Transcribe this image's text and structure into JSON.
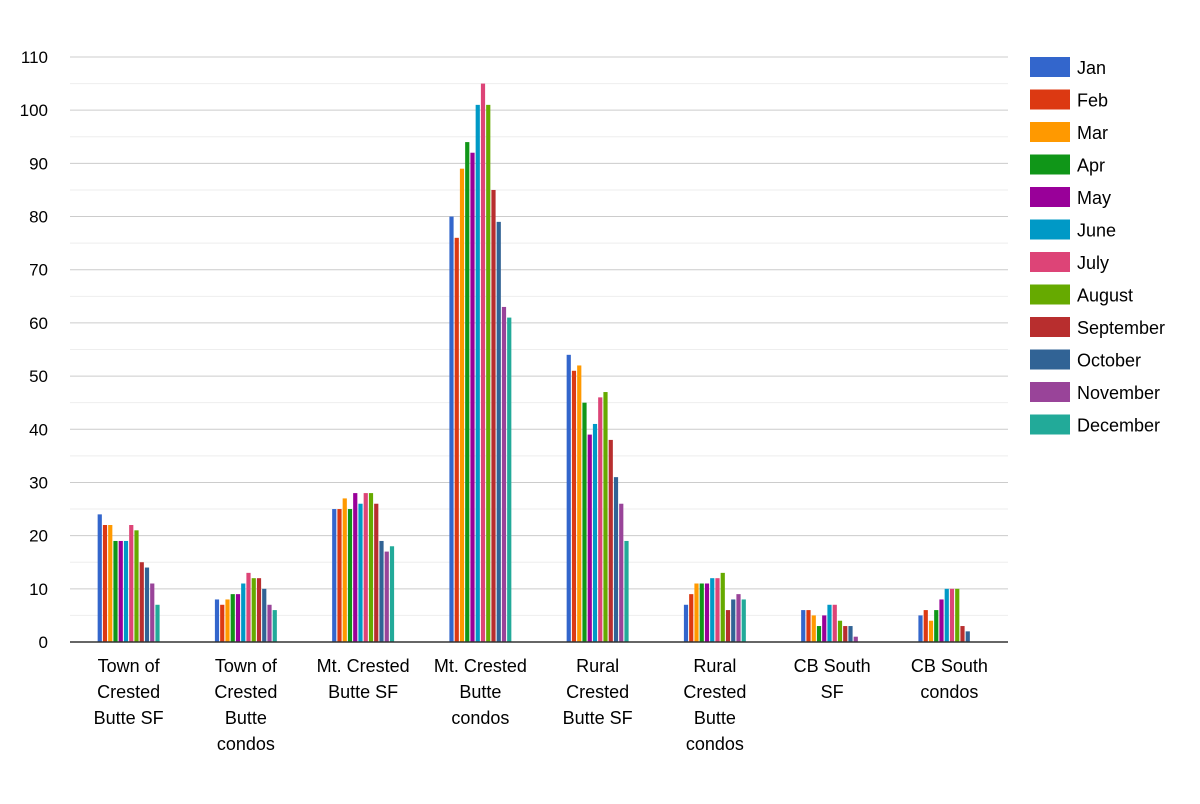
{
  "chart_data": {
    "type": "bar",
    "title": "",
    "xlabel": "",
    "ylabel": "",
    "ylim": [
      0,
      110
    ],
    "yticks": [
      0,
      10,
      20,
      30,
      40,
      50,
      60,
      70,
      80,
      90,
      100,
      110
    ],
    "grid": true,
    "legend_position": "right",
    "categories": [
      [
        "Town of",
        "Crested",
        "Butte SF"
      ],
      [
        "Town of",
        "Crested",
        "Butte",
        "condos"
      ],
      [
        "Mt. Crested",
        "Butte SF"
      ],
      [
        "Mt. Crested",
        "Butte",
        "condos"
      ],
      [
        "Rural",
        "Crested",
        "Butte SF"
      ],
      [
        "Rural",
        "Crested",
        "Butte",
        "condos"
      ],
      [
        "CB South",
        "SF"
      ],
      [
        "CB South",
        "condos"
      ]
    ],
    "series": [
      {
        "name": "Jan",
        "color": "#3366cc",
        "values": [
          24,
          8,
          25,
          80,
          54,
          7,
          6,
          5
        ]
      },
      {
        "name": "Feb",
        "color": "#dc3912",
        "values": [
          22,
          7,
          25,
          76,
          51,
          9,
          6,
          6
        ]
      },
      {
        "name": "Mar",
        "color": "#ff9900",
        "values": [
          22,
          8,
          27,
          89,
          52,
          11,
          5,
          4
        ]
      },
      {
        "name": "Apr",
        "color": "#109618",
        "values": [
          19,
          9,
          25,
          94,
          45,
          11,
          3,
          6
        ]
      },
      {
        "name": "May",
        "color": "#990099",
        "values": [
          19,
          9,
          28,
          92,
          39,
          11,
          5,
          8
        ]
      },
      {
        "name": "June",
        "color": "#0099c6",
        "values": [
          19,
          11,
          26,
          101,
          41,
          12,
          7,
          10
        ]
      },
      {
        "name": "July",
        "color": "#dd4477",
        "values": [
          22,
          13,
          28,
          105,
          46,
          12,
          7,
          10
        ]
      },
      {
        "name": "August",
        "color": "#66aa00",
        "values": [
          21,
          12,
          28,
          101,
          47,
          13,
          4,
          10
        ]
      },
      {
        "name": "September",
        "color": "#b82e2e",
        "values": [
          15,
          12,
          26,
          85,
          38,
          6,
          3,
          3
        ]
      },
      {
        "name": "October",
        "color": "#316395",
        "values": [
          14,
          10,
          19,
          79,
          31,
          8,
          3,
          2
        ]
      },
      {
        "name": "November",
        "color": "#994499",
        "values": [
          11,
          7,
          17,
          63,
          26,
          9,
          1,
          0
        ]
      },
      {
        "name": "December",
        "color": "#22aa99",
        "values": [
          7,
          6,
          18,
          61,
          19,
          8,
          0,
          0
        ]
      }
    ]
  }
}
